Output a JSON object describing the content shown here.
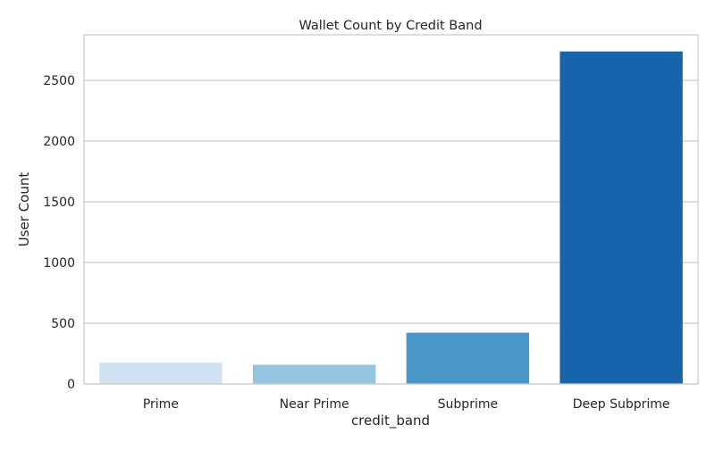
{
  "chart_data": {
    "type": "bar",
    "title": "Wallet Count by Credit Band",
    "xlabel": "credit_band",
    "ylabel": "User Count",
    "categories": [
      "Prime",
      "Near Prime",
      "Subprime",
      "Deep Subprime"
    ],
    "values": [
      175,
      158,
      422,
      2738
    ],
    "ylim": [
      0,
      2875
    ],
    "yticks": [
      0,
      500,
      1000,
      1500,
      2000,
      2500
    ],
    "grid": true,
    "bar_colors": [
      "#d0e1f2",
      "#94c4df",
      "#4a98c9",
      "#1764ab"
    ],
    "gridline_color": "#cccccc",
    "frame_color": "#cccccc",
    "text_color": "#262626"
  }
}
